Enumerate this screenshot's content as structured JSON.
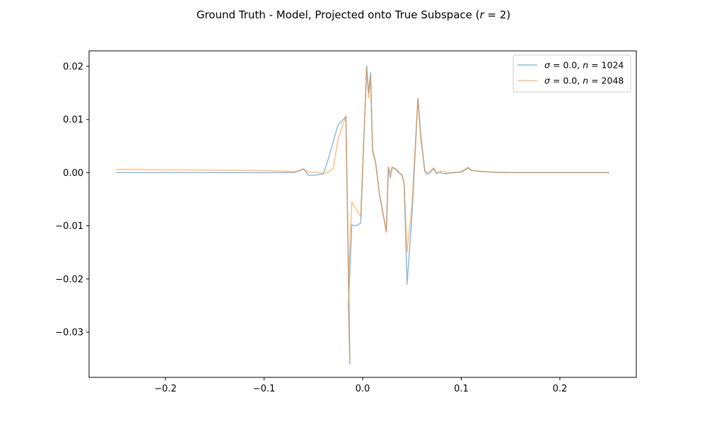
{
  "chart_data": {
    "type": "line",
    "title": {
      "prefix": "Ground Truth - Model, Projected onto True Subspace (",
      "var": "r",
      "suffix": " = 2)"
    },
    "xlabel": "",
    "ylabel": "",
    "xlim": [
      -0.2775,
      0.2775
    ],
    "ylim": [
      -0.0385,
      0.0229
    ],
    "x_ticks": [
      -0.2,
      -0.1,
      0.0,
      0.1,
      0.2
    ],
    "x_tick_labels": [
      "−0.2",
      "−0.1",
      "0.0",
      "0.1",
      "0.2"
    ],
    "y_ticks": [
      0.02,
      0.01,
      0.0,
      -0.01,
      -0.02,
      -0.03
    ],
    "y_tick_labels": [
      "0.02",
      "0.01",
      "0.00",
      "−0.01",
      "−0.02",
      "−0.03"
    ],
    "grid": false,
    "legend_position": "top-right",
    "series": [
      {
        "name": "σ = 0.0, n = 1024",
        "legend": {
          "sym1": "σ",
          "mid": " = 0.0, ",
          "sym2": "n",
          "tail": " = 1024"
        },
        "color": "#1f77b4",
        "opacity": 0.5,
        "x": [
          -0.25,
          -0.07,
          -0.065,
          -0.06,
          -0.055,
          -0.045,
          -0.04,
          -0.035,
          -0.025,
          -0.017,
          -0.013,
          -0.0145,
          -0.011,
          -0.008,
          -0.005,
          -0.002,
          0.004,
          0.006,
          0.008,
          0.01,
          0.013,
          0.017,
          0.024,
          0.026,
          0.028,
          0.03,
          0.033,
          0.036,
          0.04,
          0.042,
          0.045,
          0.05,
          0.056,
          0.059,
          0.063,
          0.065,
          0.068,
          0.072,
          0.075,
          0.078,
          0.082,
          0.085,
          0.09,
          0.1,
          0.107,
          0.11,
          0.115,
          0.13,
          0.15,
          0.2,
          0.25
        ],
        "y": [
          0.0,
          0.0,
          0.0003,
          0.0007,
          -0.0005,
          -0.0004,
          -0.0002,
          0.0025,
          0.009,
          0.0105,
          -0.036,
          -0.025,
          -0.0098,
          -0.01,
          -0.0098,
          -0.0095,
          0.0201,
          0.015,
          0.0188,
          0.004,
          0.002,
          -0.004,
          -0.011,
          0.001,
          -0.001,
          0.001,
          0.0007,
          0.0001,
          -0.0005,
          -0.002,
          -0.021,
          -0.008,
          0.014,
          0.007,
          0.0002,
          -0.0003,
          -0.0001,
          0.0008,
          -0.0002,
          0.0001,
          -0.0002,
          -0.0002,
          0.0,
          0.0001,
          0.0009,
          0.0004,
          0.0003,
          0.0001,
          0.0,
          0.0,
          0.0
        ]
      },
      {
        "name": "σ = 0.0, n = 2048",
        "legend": {
          "sym1": "σ",
          "mid": " = 0.0, ",
          "sym2": "n",
          "tail": " = 2048"
        },
        "color": "#ff7f0e",
        "opacity": 0.5,
        "x": [
          -0.25,
          -0.1,
          -0.07,
          -0.065,
          -0.06,
          -0.055,
          -0.045,
          -0.04,
          -0.036,
          -0.03,
          -0.025,
          -0.017,
          -0.013,
          -0.0145,
          -0.011,
          -0.008,
          -0.005,
          -0.002,
          0.004,
          0.006,
          0.008,
          0.01,
          0.013,
          0.017,
          0.024,
          0.026,
          0.028,
          0.03,
          0.033,
          0.036,
          0.04,
          0.042,
          0.045,
          0.05,
          0.056,
          0.059,
          0.063,
          0.065,
          0.068,
          0.072,
          0.075,
          0.078,
          0.082,
          0.085,
          0.09,
          0.1,
          0.107,
          0.11,
          0.115,
          0.13,
          0.15,
          0.2,
          0.25
        ],
        "y": [
          0.0006,
          0.0004,
          0.0002,
          0.0004,
          0.0007,
          0.0001,
          0.0,
          -0.0002,
          0.0,
          0.0007,
          0.0063,
          0.0107,
          -0.035,
          -0.02,
          -0.0055,
          -0.0065,
          -0.0075,
          -0.0082,
          0.0197,
          0.014,
          0.018,
          0.0045,
          0.002,
          -0.004,
          -0.0113,
          0.001,
          0.0,
          0.001,
          0.0008,
          0.0003,
          -0.0005,
          -0.002,
          -0.015,
          -0.006,
          0.0138,
          0.006,
          0.0005,
          0.0,
          0.0002,
          0.0009,
          0.0,
          0.0001,
          0.0003,
          0.0,
          -0.0001,
          0.0002,
          0.001,
          0.0005,
          0.0003,
          0.0001,
          0.0,
          0.0,
          0.0
        ]
      }
    ]
  }
}
